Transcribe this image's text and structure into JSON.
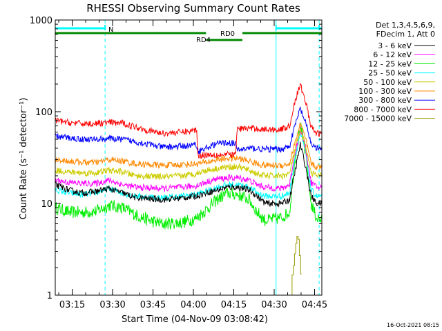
{
  "chart_data": {
    "type": "line",
    "title": "RHESSI Observing Summary Count Rates",
    "xlabel": "Start Time (04-Nov-09 03:08:42)",
    "ylabel": "Count Rate (s⁻¹ detector⁻¹)",
    "x_unit": "minutes after 03:08:42",
    "xlim": [
      0,
      99
    ],
    "ylim": [
      1,
      1000
    ],
    "yscale": "log",
    "x_ticks": [
      {
        "x": 6.3,
        "label": "03:15"
      },
      {
        "x": 21.3,
        "label": "03:30"
      },
      {
        "x": 36.3,
        "label": "03:45"
      },
      {
        "x": 51.3,
        "label": "04:00"
      },
      {
        "x": 66.3,
        "label": "04:15"
      },
      {
        "x": 81.3,
        "label": "04:30"
      },
      {
        "x": 96.3,
        "label": "04:45"
      }
    ],
    "y_ticks": [
      {
        "y": 1,
        "label": "1"
      },
      {
        "y": 10,
        "label": "10"
      },
      {
        "y": 100,
        "label": "100"
      },
      {
        "y": 1000,
        "label": "1000"
      }
    ],
    "legend": {
      "header": [
        "Det 1,3,4,5,6,9,",
        "FDecim 1, Att 0"
      ],
      "placement": "right"
    },
    "series": [
      {
        "name": "3 - 6 keV",
        "color": "#000000",
        "points": [
          [
            0,
            16
          ],
          [
            5,
            14
          ],
          [
            10,
            13
          ],
          [
            15,
            13.5
          ],
          [
            20,
            14.5
          ],
          [
            25,
            13
          ],
          [
            30,
            11.5
          ],
          [
            40,
            11
          ],
          [
            47,
            11.5
          ],
          [
            52,
            12
          ],
          [
            56,
            13
          ],
          [
            60,
            14
          ],
          [
            64,
            15
          ],
          [
            68,
            15
          ],
          [
            72,
            14
          ],
          [
            75,
            12
          ],
          [
            78,
            10
          ],
          [
            84,
            10
          ],
          [
            87,
            11
          ],
          [
            89,
            22
          ],
          [
            91,
            44
          ],
          [
            93,
            25
          ],
          [
            95,
            12
          ],
          [
            97,
            10
          ],
          [
            99,
            10
          ]
        ]
      },
      {
        "name": "6 - 12 keV",
        "color": "#ff00ff",
        "points": [
          [
            0,
            18
          ],
          [
            5,
            17
          ],
          [
            10,
            16.5
          ],
          [
            15,
            16.5
          ],
          [
            20,
            18
          ],
          [
            25,
            16
          ],
          [
            30,
            15
          ],
          [
            40,
            14.5
          ],
          [
            47,
            15
          ],
          [
            52,
            15.5
          ],
          [
            56,
            17
          ],
          [
            60,
            18.5
          ],
          [
            64,
            19
          ],
          [
            68,
            19
          ],
          [
            72,
            18
          ],
          [
            75,
            16
          ],
          [
            78,
            15
          ],
          [
            84,
            14.5
          ],
          [
            87,
            16
          ],
          [
            89,
            35
          ],
          [
            91,
            65
          ],
          [
            93,
            40
          ],
          [
            95,
            17
          ],
          [
            97,
            15
          ],
          [
            99,
            15
          ]
        ]
      },
      {
        "name": "12 - 25 keV",
        "color": "#00ee00",
        "points": [
          [
            0,
            9
          ],
          [
            5,
            8
          ],
          [
            10,
            8
          ],
          [
            15,
            8.2
          ],
          [
            20,
            9.5
          ],
          [
            25,
            9
          ],
          [
            30,
            7.5
          ],
          [
            35,
            6.5
          ],
          [
            40,
            6
          ],
          [
            47,
            6.2
          ],
          [
            52,
            6.8
          ],
          [
            56,
            8.5
          ],
          [
            60,
            11
          ],
          [
            64,
            13
          ],
          [
            68,
            12.5
          ],
          [
            72,
            11
          ],
          [
            75,
            8
          ],
          [
            78,
            6.5
          ],
          [
            84,
            7
          ],
          [
            87,
            8
          ],
          [
            89,
            30
          ],
          [
            91,
            70
          ],
          [
            93,
            35
          ],
          [
            95,
            10
          ],
          [
            97,
            7
          ],
          [
            99,
            6.5
          ]
        ]
      },
      {
        "name": "25 - 50 keV",
        "color": "#00ffff",
        "points": [
          [
            0,
            14
          ],
          [
            5,
            13
          ],
          [
            10,
            12.5
          ],
          [
            15,
            13
          ],
          [
            20,
            14.5
          ],
          [
            25,
            13
          ],
          [
            30,
            12
          ],
          [
            40,
            11.5
          ],
          [
            47,
            12
          ],
          [
            52,
            12.5
          ],
          [
            56,
            13.5
          ],
          [
            60,
            15
          ],
          [
            64,
            16
          ],
          [
            68,
            16
          ],
          [
            72,
            15
          ],
          [
            75,
            13
          ],
          [
            78,
            12
          ],
          [
            84,
            12
          ],
          [
            87,
            13
          ],
          [
            89,
            32
          ],
          [
            91,
            58
          ],
          [
            93,
            36
          ],
          [
            95,
            14
          ],
          [
            97,
            12
          ],
          [
            99,
            12
          ]
        ]
      },
      {
        "name": "50 - 100 keV",
        "color": "#cccc00",
        "points": [
          [
            0,
            23
          ],
          [
            5,
            22
          ],
          [
            10,
            21.5
          ],
          [
            15,
            21.5
          ],
          [
            20,
            23
          ],
          [
            25,
            22
          ],
          [
            30,
            20
          ],
          [
            40,
            19.5
          ],
          [
            47,
            20
          ],
          [
            52,
            21
          ],
          [
            56,
            23
          ],
          [
            60,
            24
          ],
          [
            64,
            25
          ],
          [
            68,
            25
          ],
          [
            72,
            23
          ],
          [
            75,
            21
          ],
          [
            78,
            20
          ],
          [
            84,
            20
          ],
          [
            87,
            21
          ],
          [
            89,
            38
          ],
          [
            91,
            62
          ],
          [
            93,
            42
          ],
          [
            95,
            22
          ],
          [
            97,
            20
          ],
          [
            99,
            20
          ]
        ]
      },
      {
        "name": "100 - 300 keV",
        "color": "#ff8800",
        "points": [
          [
            0,
            30
          ],
          [
            5,
            29
          ],
          [
            10,
            28
          ],
          [
            15,
            28
          ],
          [
            20,
            30
          ],
          [
            25,
            29
          ],
          [
            30,
            27
          ],
          [
            40,
            26
          ],
          [
            47,
            26.5
          ],
          [
            52,
            27
          ],
          [
            56,
            28
          ],
          [
            60,
            30
          ],
          [
            64,
            31
          ],
          [
            68,
            31
          ],
          [
            72,
            29
          ],
          [
            75,
            27
          ],
          [
            78,
            26
          ],
          [
            84,
            26
          ],
          [
            87,
            27
          ],
          [
            89,
            45
          ],
          [
            91,
            75
          ],
          [
            93,
            50
          ],
          [
            95,
            27
          ],
          [
            97,
            25
          ],
          [
            99,
            25
          ]
        ]
      },
      {
        "name": "300 - 800 keV",
        "color": "#0000ff",
        "points": [
          [
            0,
            54
          ],
          [
            5,
            52
          ],
          [
            10,
            50
          ],
          [
            15,
            50
          ],
          [
            20,
            51
          ],
          [
            25,
            50
          ],
          [
            30,
            47
          ],
          [
            35,
            44
          ],
          [
            40,
            41
          ],
          [
            47,
            42
          ],
          [
            51,
            43
          ],
          [
            52.5,
            44
          ],
          [
            53,
            37
          ],
          [
            56,
            40
          ],
          [
            60,
            45
          ],
          [
            64,
            46
          ],
          [
            67,
            45
          ],
          [
            67.5,
            38
          ],
          [
            72,
            40
          ],
          [
            78,
            39
          ],
          [
            84,
            39
          ],
          [
            87,
            42
          ],
          [
            89,
            70
          ],
          [
            91,
            108
          ],
          [
            93,
            75
          ],
          [
            95,
            45
          ],
          [
            97,
            40
          ],
          [
            99,
            39
          ]
        ]
      },
      {
        "name": "800 - 7000 keV",
        "color": "#ff0000",
        "points": [
          [
            0,
            80
          ],
          [
            5,
            76
          ],
          [
            10,
            74
          ],
          [
            15,
            74
          ],
          [
            20,
            76
          ],
          [
            25,
            75
          ],
          [
            30,
            68
          ],
          [
            35,
            62
          ],
          [
            40,
            58
          ],
          [
            47,
            60
          ],
          [
            51,
            62
          ],
          [
            52.5,
            64
          ],
          [
            53,
            33
          ],
          [
            56,
            34
          ],
          [
            60,
            34
          ],
          [
            64,
            34
          ],
          [
            67,
            34
          ],
          [
            67.5,
            65
          ],
          [
            72,
            66
          ],
          [
            78,
            64
          ],
          [
            84,
            64
          ],
          [
            87,
            70
          ],
          [
            89,
            130
          ],
          [
            91,
            195
          ],
          [
            93,
            130
          ],
          [
            95,
            68
          ],
          [
            97,
            58
          ],
          [
            99,
            58
          ]
        ]
      },
      {
        "name": "7000 - 15000 keV",
        "color": "#999900",
        "points": [
          [
            87.5,
            1
          ],
          [
            88.2,
            1.9
          ],
          [
            88.8,
            2.7
          ],
          [
            89.3,
            3.8
          ],
          [
            89.7,
            4.5
          ],
          [
            90.1,
            4.0
          ],
          [
            90.5,
            3.2
          ],
          [
            91.0,
            2.0
          ],
          [
            91.5,
            1
          ]
        ]
      }
    ],
    "mode_bars": [
      {
        "label": "N",
        "color": "#00ffff",
        "segments": [
          [
            0,
            18.5
          ],
          [
            82,
            99
          ]
        ],
        "tick_marks": [
          18.5,
          82,
          98
        ]
      },
      {
        "label": "RD0",
        "color": "#008800",
        "segments": [
          [
            0,
            56
          ],
          [
            69.5,
            99
          ]
        ]
      },
      {
        "label": "RD4",
        "color": "#008800",
        "segments": [
          [
            56,
            69.5
          ]
        ]
      }
    ],
    "vertical_lines": [
      {
        "x": 0,
        "color": "#00ffff",
        "style": "solid"
      },
      {
        "x": 18.5,
        "color": "#00ffff",
        "style": "dashed"
      },
      {
        "x": 82,
        "color": "#00ffff",
        "style": "solid"
      },
      {
        "x": 98,
        "color": "#00ffff",
        "style": "dashed"
      }
    ],
    "footer_timestamp": "16-Oct-2021 08:15"
  }
}
